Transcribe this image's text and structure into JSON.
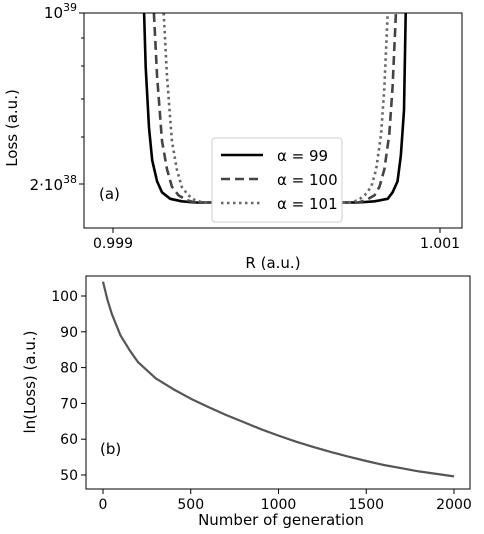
{
  "chart_data": [
    {
      "type": "line",
      "panel_label": "(a)",
      "xlabel": "R (a.u.)",
      "ylabel": "Loss (a.u.)",
      "xlim": [
        0.999,
        1.001
      ],
      "x_ticks": [
        "0.999",
        "1.001"
      ],
      "y_ticks": [
        "10^39",
        "2·10^38"
      ],
      "y_scale": "log",
      "legend": {
        "position": "center-bottom",
        "entries": [
          {
            "label": "α = 99",
            "style": "solid"
          },
          {
            "label": "α = 100",
            "style": "dashed"
          },
          {
            "label": "α = 101",
            "style": "dotted"
          }
        ]
      },
      "series": [
        {
          "name": "α = 99",
          "style": "solid",
          "color": "#000000",
          "x": [
            0.99919,
            0.9992,
            0.99922,
            0.99924,
            0.99927,
            0.9993,
            0.99935,
            0.99942,
            0.9995,
            1.0,
            1.0005,
            1.0006,
            1.00068,
            1.00071,
            1.00074,
            1.00076,
            1.00078,
            1.00079
          ],
          "y": [
            1e+39,
            6e+38,
            3.4e+38,
            2.5e+38,
            2.05e+38,
            1.85e+38,
            1.74e+38,
            1.7e+38,
            1.68e+38,
            1.68e+38,
            1.68e+38,
            1.7e+38,
            1.74e+38,
            1.85e+38,
            2.05e+38,
            2.6e+38,
            4e+38,
            1e+39
          ]
        },
        {
          "name": "α = 100",
          "style": "dashed",
          "color": "#444444",
          "x": [
            0.99925,
            0.99927,
            0.9993,
            0.99933,
            0.99936,
            0.9994,
            0.99945,
            0.9995,
            1.0,
            1.0005,
            1.00055,
            1.0006,
            1.00063,
            1.00066,
            1.00069,
            1.00071,
            1.00073
          ],
          "y": [
            1e+39,
            5.5e+38,
            3e+38,
            2.3e+38,
            1.95e+38,
            1.8e+38,
            1.72e+38,
            1.68e+38,
            1.68e+38,
            1.68e+38,
            1.72e+38,
            1.8e+38,
            1.95e+38,
            2.3e+38,
            3.2e+38,
            5e+38,
            1e+39
          ]
        },
        {
          "name": "α = 101",
          "style": "dotted",
          "color": "#666666",
          "x": [
            0.99931,
            0.99933,
            0.99936,
            0.99939,
            0.99942,
            0.99946,
            0.9995,
            0.99955,
            1.0,
            1.00045,
            1.0005,
            1.00054,
            1.00058,
            1.00061,
            1.00064,
            1.00066,
            1.00068
          ],
          "y": [
            1e+39,
            5.5e+38,
            3e+38,
            2.3e+38,
            1.95e+38,
            1.8e+38,
            1.72e+38,
            1.68e+38,
            1.68e+38,
            1.68e+38,
            1.72e+38,
            1.8e+38,
            1.95e+38,
            2.3e+38,
            3.2e+38,
            5e+38,
            1e+39
          ]
        }
      ]
    },
    {
      "type": "line",
      "panel_label": "(b)",
      "xlabel": "Number of generation",
      "ylabel": "ln(Loss) (a.u.)",
      "xlim": [
        -80,
        2090
      ],
      "ylim": [
        47.5,
        107
      ],
      "x_ticks": [
        0,
        500,
        1000,
        1500,
        2000
      ],
      "y_ticks": [
        50,
        60,
        70,
        80,
        90,
        100
      ],
      "series": [
        {
          "color": "#555555",
          "x": [
            0,
            25,
            50,
            100,
            150,
            200,
            300,
            400,
            500,
            600,
            700,
            800,
            900,
            1000,
            1100,
            1200,
            1300,
            1400,
            1500,
            1600,
            1700,
            1800,
            1900,
            2000
          ],
          "y": [
            104,
            99,
            95,
            89,
            85,
            81.5,
            77,
            74,
            71.3,
            69,
            66.8,
            64.8,
            62.8,
            61,
            59.3,
            57.8,
            56.4,
            55.1,
            53.9,
            52.8,
            51.9,
            51,
            50.3,
            49.6
          ]
        }
      ]
    }
  ]
}
